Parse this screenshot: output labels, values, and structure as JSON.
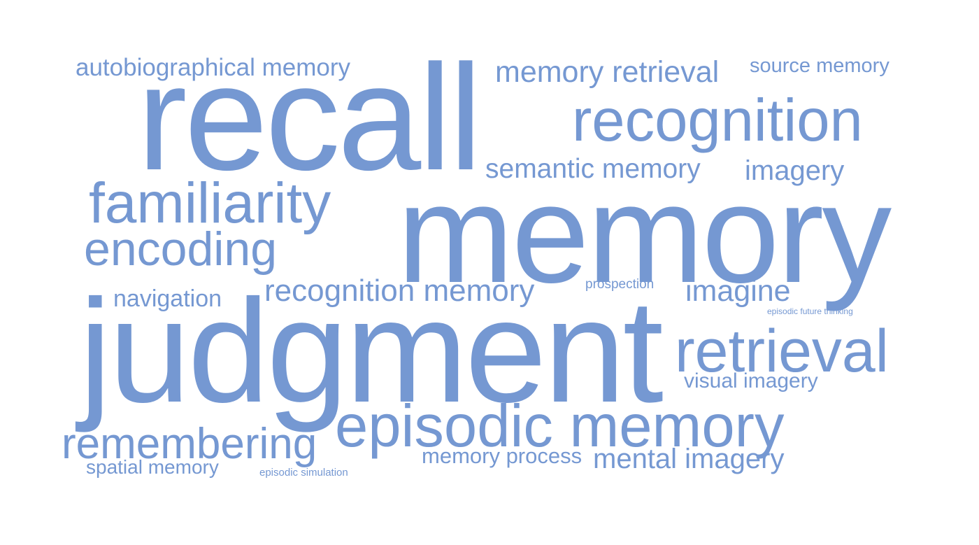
{
  "word_cloud": {
    "color": "#7598d2",
    "words": {
      "autobiographical_memory": "autobiographical memory",
      "memory_retrieval": "memory retrieval",
      "source_memory": "source memory",
      "recall": "recall",
      "recognition": "recognition",
      "semantic_memory": "semantic memory",
      "imagery": "imagery",
      "familiarity": "familiarity",
      "memory": "memory",
      "encoding": "encoding",
      "navigation": "navigation",
      "recognition_memory": "recognition memory",
      "prospection": "prospection",
      "imagine": "imagine",
      "episodic_future_thinking": "episodic future thinking",
      "judgment": "judgment",
      "retrieval": "retrieval",
      "visual_imagery": "visual imagery",
      "episodic_memory": "episodic memory",
      "remembering": "remembering",
      "memory_process": "memory process",
      "mental_imagery": "mental imagery",
      "spatial_memory": "spatial memory",
      "episodic_simulation": "episodic simulation"
    }
  }
}
